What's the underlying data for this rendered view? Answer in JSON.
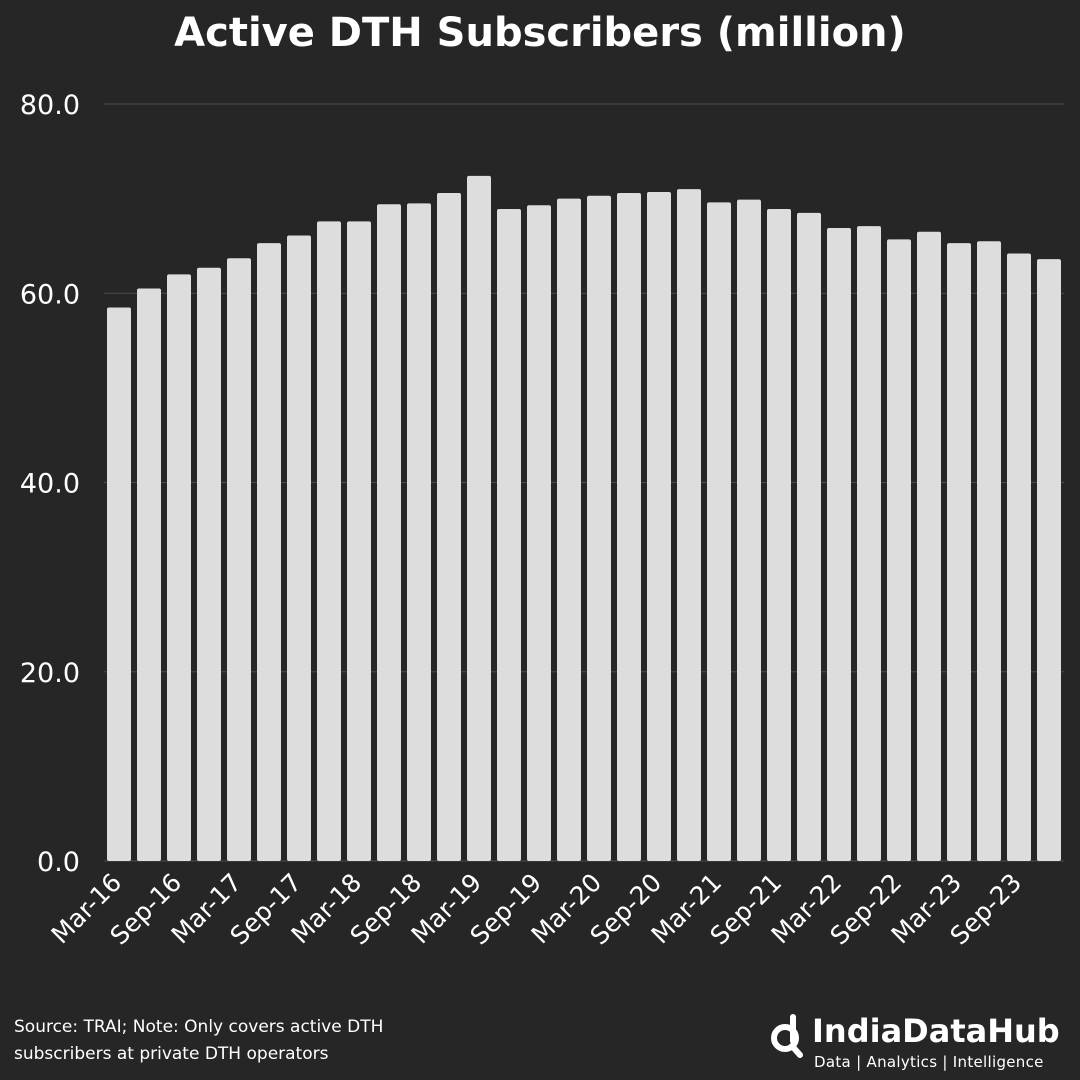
{
  "chart_data": {
    "type": "bar",
    "title": "Active DTH Subscribers (million)",
    "xlabel": "",
    "ylabel": "",
    "ylim": [
      0,
      80
    ],
    "yticks": [
      "0.0",
      "20.0",
      "40.0",
      "60.0",
      "80.0"
    ],
    "grid": true,
    "categories": [
      "Mar-16",
      "Jun-16",
      "Sep-16",
      "Dec-16",
      "Mar-17",
      "Jun-17",
      "Sep-17",
      "Dec-17",
      "Mar-18",
      "Jun-18",
      "Sep-18",
      "Dec-18",
      "Mar-19",
      "Jun-19",
      "Sep-19",
      "Dec-19",
      "Mar-20",
      "Jun-20",
      "Sep-20",
      "Dec-20",
      "Mar-21",
      "Jun-21",
      "Sep-21",
      "Dec-21",
      "Mar-22",
      "Jun-22",
      "Sep-22",
      "Dec-22",
      "Mar-23",
      "Jun-23",
      "Sep-23",
      "Dec-23"
    ],
    "tick_labels": [
      "Mar-16",
      "Sep-16",
      "Mar-17",
      "Sep-17",
      "Mar-18",
      "Sep-18",
      "Mar-19",
      "Sep-19",
      "Mar-20",
      "Sep-20",
      "Mar-21",
      "Sep-21",
      "Mar-22",
      "Sep-22",
      "Mar-23",
      "Sep-23"
    ],
    "values": [
      58.5,
      60.5,
      62.0,
      62.7,
      63.7,
      65.3,
      66.1,
      67.6,
      67.6,
      69.4,
      69.5,
      70.6,
      72.4,
      68.9,
      69.3,
      70.0,
      70.3,
      70.6,
      70.7,
      71.0,
      69.6,
      69.9,
      68.9,
      68.5,
      66.9,
      67.1,
      65.7,
      66.5,
      65.3,
      65.5,
      64.2,
      63.6
    ],
    "bar_color": "#dddddd",
    "grid_color": "#4a4a4a",
    "background_color": "#262626"
  },
  "footer": {
    "note_line1": "Source: TRAI; Note: Only covers active DTH",
    "note_line2": "subscribers at private DTH operators"
  },
  "brand": {
    "name": "IndiaDataHub",
    "tagline": "Data | Analytics | Intelligence",
    "icon": "magnifier-d-logo"
  }
}
